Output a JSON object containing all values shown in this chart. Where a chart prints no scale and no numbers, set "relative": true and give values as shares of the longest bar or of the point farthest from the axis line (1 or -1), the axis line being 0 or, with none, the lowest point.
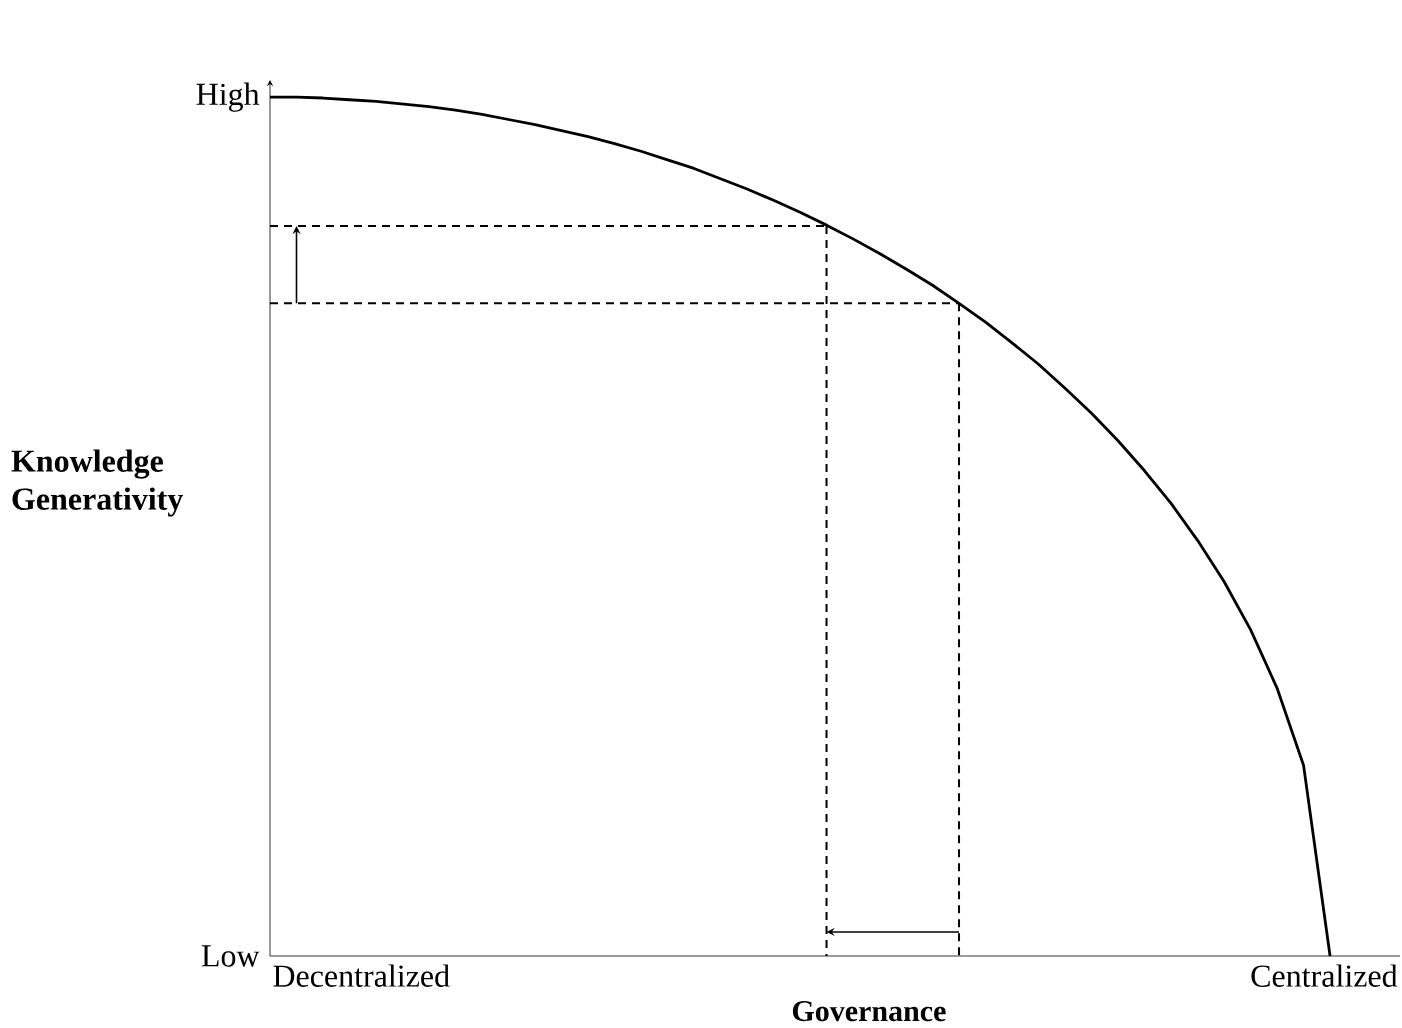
{
  "chart_data": {
    "type": "line",
    "relative": true,
    "xlabel": "Governance",
    "ylabel": "Knowledge Generativity",
    "annotations": [
      "High",
      "Low",
      "Decentralized",
      "Centralized"
    ],
    "categories": [
      null,
      null,
      null,
      null,
      null,
      null,
      null,
      null,
      null,
      null,
      null,
      null,
      null,
      null,
      null,
      null,
      null,
      null,
      null,
      null,
      null,
      null,
      null,
      null,
      null,
      null,
      null,
      null,
      null,
      null,
      null,
      null,
      null,
      null,
      null,
      null,
      null,
      null,
      null,
      null,
      null
    ],
    "marker": "none",
    "line_style": "solid",
    "series": [
      {
        "color": "#000000",
        "values": [
          1.0,
          1.0,
          0.999,
          0.997,
          0.995,
          0.992,
          0.989,
          0.985,
          0.98,
          0.974,
          0.968,
          0.961,
          0.954,
          0.946,
          0.937,
          0.927,
          0.917,
          0.905,
          0.893,
          0.88,
          0.866,
          0.851,
          0.835,
          0.818,
          0.8,
          0.781,
          0.76,
          0.738,
          0.714,
          0.689,
          0.661,
          0.632,
          0.6,
          0.565,
          0.527,
          0.484,
          0.436,
          0.38,
          0.312,
          0.222,
          0
        ]
      },
      {
        "color": "#000000",
        "line_style": "dashed",
        "values": [
          0.85,
          0.85,
          0.85,
          0.85,
          0.85,
          0.85,
          0.85,
          0.85,
          0.85,
          0.85,
          0.85,
          0.85,
          0.85,
          0.85,
          0.85,
          0.85,
          0.85,
          0.85,
          0.85,
          0.85,
          0.85,
          0.85,
          null,
          null,
          null,
          null,
          null,
          null,
          null,
          null,
          null,
          null,
          null,
          null,
          null,
          null,
          null,
          null,
          null,
          null,
          null
        ]
      },
      {
        "color": "#000000",
        "line_style": "dashed",
        "values": [
          0.76,
          0.76,
          0.76,
          0.76,
          0.76,
          0.76,
          0.76,
          0.76,
          0.76,
          0.76,
          0.76,
          0.76,
          0.76,
          0.76,
          0.76,
          0.76,
          0.76,
          0.76,
          0.76,
          0.76,
          0.76,
          0.76,
          0.76,
          0.76,
          0.76,
          0.76,
          0.76,
          null,
          null,
          null,
          null,
          null,
          null,
          null,
          null,
          null,
          null,
          null,
          null,
          null,
          null
        ]
      }
    ]
  }
}
